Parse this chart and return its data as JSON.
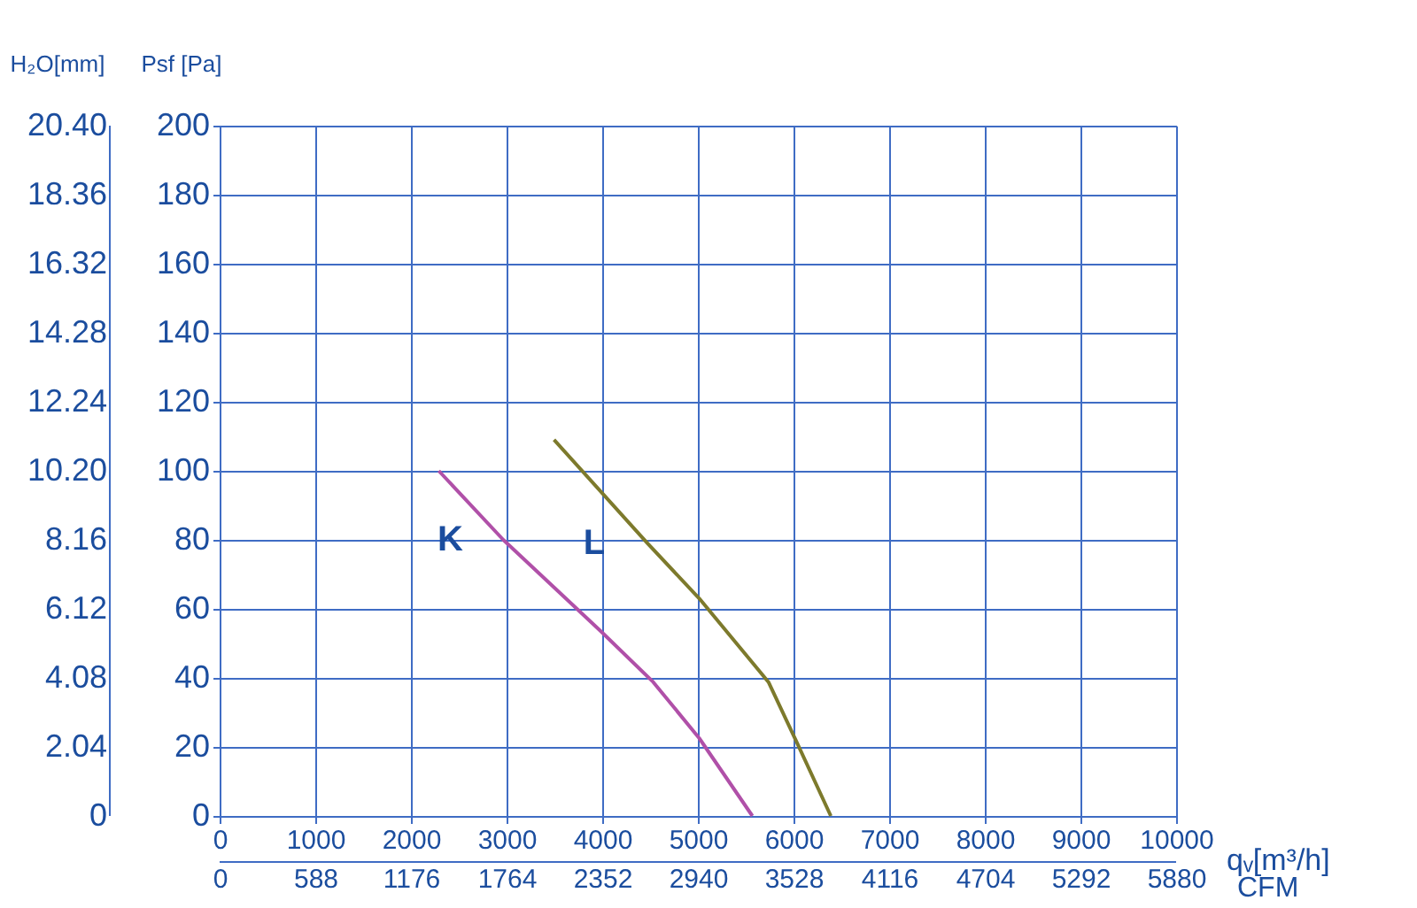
{
  "chart_data": {
    "type": "line",
    "xlabel": "qᵥ[m³/h]",
    "ylabel": "Psf [Pa]",
    "y2label": "H₂O[mm]",
    "x2label": "CFM",
    "series": [
      {
        "color": "#b050a8",
        "x": [
          2291,
          2966,
          3990,
          4533,
          5015,
          5570
        ],
        "values": [
          100,
          80,
          53.4,
          38.8,
          22.5,
          0
        ]
      },
      {
        "color": "#7d7a2c",
        "x": [
          3496,
          4473,
          5015,
          5738,
          6040,
          6390
        ],
        "values": [
          109,
          79,
          63,
          38.8,
          21,
          0
        ]
      }
    ],
    "annotations": [
      {
        "text": "K",
        "x": 2966,
        "y": 80
      },
      {
        "text": "L",
        "x": 4473,
        "y": 79
      }
    ],
    "xlim": [
      0,
      10000
    ],
    "xticks": [
      0,
      1000,
      2000,
      3000,
      4000,
      5000,
      6000,
      7000,
      8000,
      9000,
      10000
    ],
    "ylim": [
      0,
      200
    ],
    "yticks": [
      0,
      20,
      40,
      60,
      80,
      100,
      120,
      140,
      160,
      180,
      200
    ],
    "y2lim": [
      0,
      20.4
    ],
    "y2ticks": [
      0,
      2.04,
      4.08,
      6.12,
      8.16,
      {
        "value": 10.2,
        "label": "10.20"
      },
      12.24,
      14.28,
      16.32,
      18.36,
      {
        "value": 20.4,
        "label": "20.40"
      }
    ],
    "x2lim": [
      0,
      5880
    ],
    "x2ticks": [
      0,
      588,
      1176,
      1764,
      2352,
      2940,
      3528,
      4116,
      4704,
      5292,
      5880
    ],
    "grid": true,
    "marker": "none",
    "line_style": "solid",
    "legend": false
  }
}
